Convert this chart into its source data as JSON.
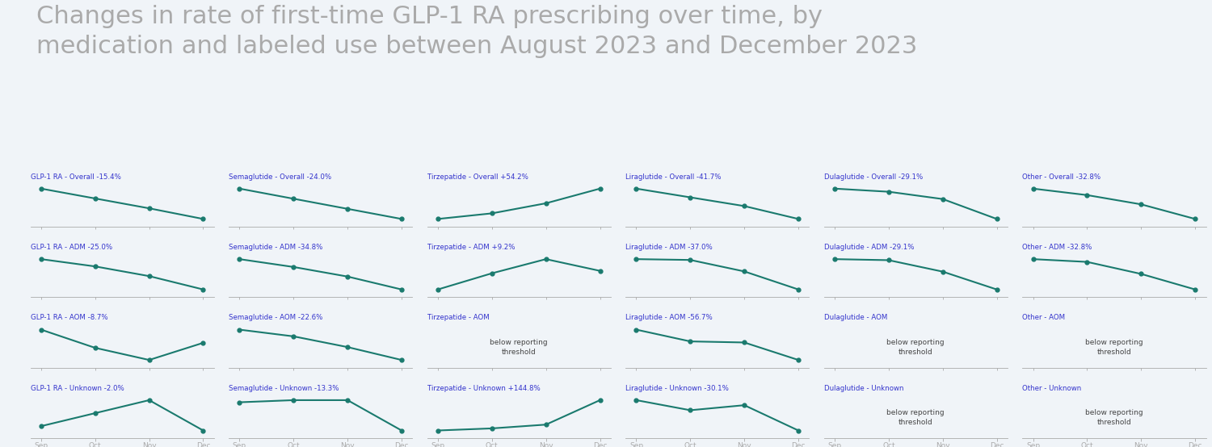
{
  "title": "Changes in rate of first-time GLP-1 RA prescribing over time, by\nmedication and labeled use between August 2023 and December 2023",
  "title_color": "#aaaaaa",
  "line_color": "#1a7a6e",
  "label_color": "#3333cc",
  "background_color": "#f0f4f8",
  "x_labels": [
    "Sep",
    "Oct",
    "Nov",
    "Dec"
  ],
  "x_values": [
    0,
    1,
    2,
    3
  ],
  "panels": [
    {
      "label": "GLP-1 RA - Overall -15.4%",
      "values": [
        100,
        95,
        90,
        84.6
      ],
      "below": false
    },
    {
      "label": "Semaglutide - Overall -24.0%",
      "values": [
        100,
        92,
        84,
        76.0
      ],
      "below": false
    },
    {
      "label": "Tirzepatide - Overall +54.2%",
      "values": [
        100,
        110,
        128,
        154.2
      ],
      "below": false
    },
    {
      "label": "Liraglutide - Overall -41.7%",
      "values": [
        100,
        88,
        76,
        58.3
      ],
      "below": false
    },
    {
      "label": "Dulaglutide - Overall -29.1%",
      "values": [
        100,
        97,
        90,
        70.9
      ],
      "below": false
    },
    {
      "label": "Other - Overall -32.8%",
      "values": [
        100,
        93,
        83,
        67.2
      ],
      "below": false
    },
    {
      "label": "GLP-1 RA - ADM -25.0%",
      "values": [
        100,
        94,
        86,
        75.0
      ],
      "below": false
    },
    {
      "label": "Semaglutide - ADM -34.8%",
      "values": [
        100,
        91,
        80,
        65.2
      ],
      "below": false
    },
    {
      "label": "Tirzepatide - ADM +9.2%",
      "values": [
        100,
        108,
        115,
        109.2
      ],
      "below": false
    },
    {
      "label": "Liraglutide - ADM -37.0%",
      "values": [
        100,
        99,
        85,
        63.0
      ],
      "below": false
    },
    {
      "label": "Dulaglutide - ADM -29.1%",
      "values": [
        100,
        99,
        88,
        70.9
      ],
      "below": false
    },
    {
      "label": "Other - ADM -32.8%",
      "values": [
        100,
        97,
        84,
        67.2
      ],
      "below": false
    },
    {
      "label": "GLP-1 RA - AOM -8.7%",
      "values": [
        100,
        88,
        80,
        91.3
      ],
      "below": false
    },
    {
      "label": "Semaglutide - AOM -22.6%",
      "values": [
        100,
        95,
        87,
        77.4
      ],
      "below": false
    },
    {
      "label": "Tirzepatide - AOM",
      "values": null,
      "below": true
    },
    {
      "label": "Liraglutide - AOM -56.7%",
      "values": [
        100,
        78,
        76,
        43.3
      ],
      "below": false
    },
    {
      "label": "Dulaglutide - AOM",
      "values": null,
      "below": true
    },
    {
      "label": "Other - AOM",
      "values": null,
      "below": true
    },
    {
      "label": "GLP-1 RA - Unknown -2.0%",
      "values": [
        100,
        106,
        112,
        98.0
      ],
      "below": false
    },
    {
      "label": "Semaglutide - Unknown -13.3%",
      "values": [
        100,
        101,
        101,
        86.7
      ],
      "below": false
    },
    {
      "label": "Tirzepatide - Unknown +144.8%",
      "values": [
        100,
        110,
        128,
        244.8
      ],
      "below": false
    },
    {
      "label": "Liraglutide - Unknown -30.1%",
      "values": [
        100,
        90,
        95,
        69.9
      ],
      "below": false
    },
    {
      "label": "Dulaglutide - Unknown",
      "values": null,
      "below": true
    },
    {
      "label": "Other - Unknown",
      "values": null,
      "below": true
    }
  ]
}
